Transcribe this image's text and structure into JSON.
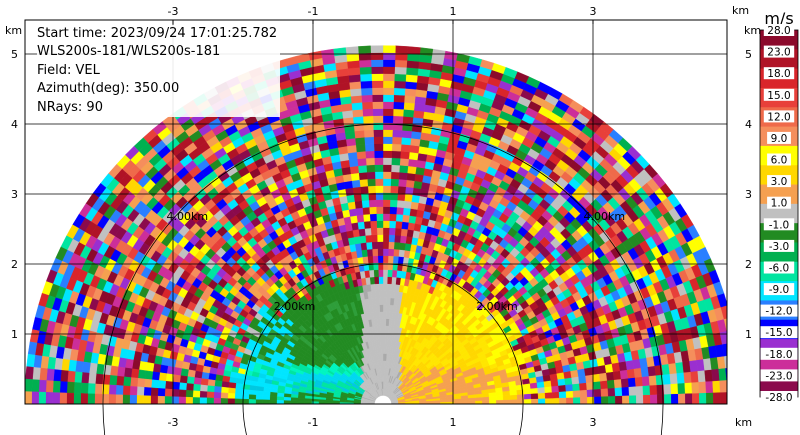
{
  "info": {
    "start_time": "Start time: 2023/09/24 17:01:25.782",
    "instrument": "WLS200s-181/WLS200s-181",
    "field": "Field: VEL",
    "azimuth": "Azimuth(deg): 350.00",
    "nrays": "NRays: 90"
  },
  "chart_data": {
    "type": "heatmap",
    "projection": "polar sector (RHI-style half disc)",
    "x_axis": {
      "unit": "km",
      "ticks": [
        "-3",
        "-1",
        "1",
        "3"
      ],
      "range": [
        -6,
        6
      ]
    },
    "y_axis": {
      "unit": "km",
      "ticks": [
        "1",
        "2",
        "3",
        "4",
        "5"
      ],
      "range": [
        0,
        5.5
      ]
    },
    "range_rings": [
      "2.00km",
      "4.00km"
    ],
    "max_range_km": 5.1,
    "grid": true,
    "colorbar": {
      "unit": "m/s",
      "labels": [
        "28.0",
        "23.0",
        "18.0",
        "15.0",
        "12.0",
        "9.0",
        "6.0",
        "3.0",
        "1.0",
        "-1.0",
        "-3.0",
        "-6.0",
        "-9.0",
        "-12.0",
        "-15.0",
        "-18.0",
        "-23.0",
        "-28.0"
      ],
      "colors": [
        "#8b0a2c",
        "#b01326",
        "#d9252a",
        "#e8403a",
        "#ef6a4a",
        "#f58e5c",
        "#ffff00",
        "#ffd700",
        "#f5a050",
        "#c0c0c0",
        "#228b22",
        "#00b050",
        "#00e5a0",
        "#00e5ff",
        "#2a7fff",
        "#0000ff",
        "#9a2fd0",
        "#cc2e9a",
        "#8b0a4c"
      ]
    },
    "regions": [
      {
        "range_km": [
          0,
          2.0
        ],
        "azimuth_deg": [
          90,
          180
        ],
        "field": "receding",
        "value_ms": -3.0
      },
      {
        "range_km": [
          0,
          2.0
        ],
        "azimuth_deg": [
          0,
          90
        ],
        "field": "approaching",
        "value_ms": 5.0
      },
      {
        "range_km": [
          2.0,
          5.1
        ],
        "azimuth_deg": [
          0,
          180
        ],
        "field": "noise",
        "value_ms": null
      }
    ]
  }
}
